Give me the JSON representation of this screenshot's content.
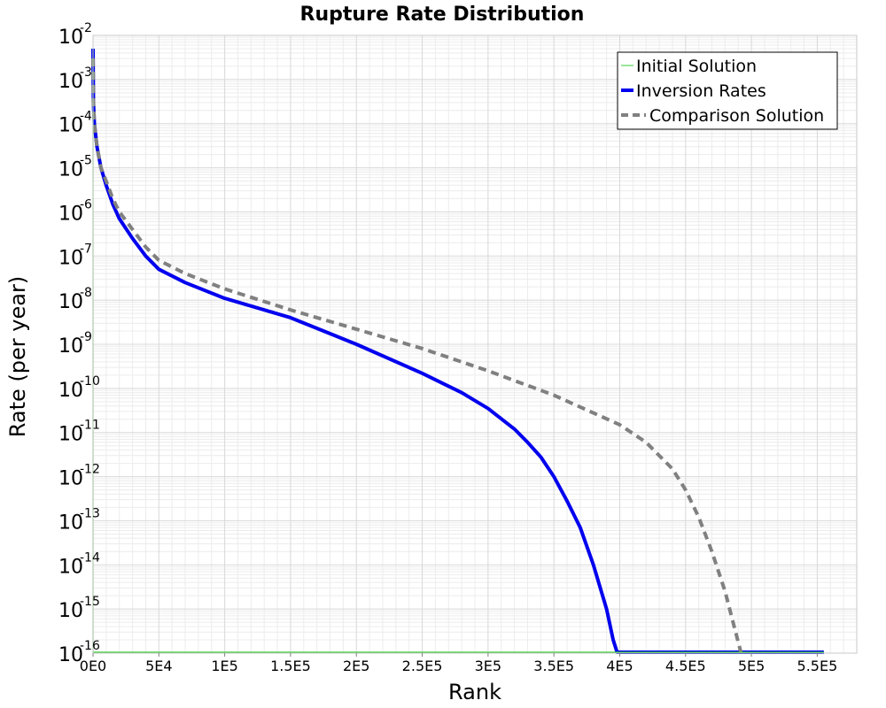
{
  "chart_data": {
    "type": "line",
    "title": "Rupture Rate Distribution",
    "xlabel": "Rank",
    "ylabel": "Rate (per year)",
    "xlim": [
      0,
      580000
    ],
    "ylim": [
      1e-16,
      0.01
    ],
    "y_scale": "log",
    "grid": true,
    "legend_position": "top-right",
    "x_ticks": [
      {
        "value": 0,
        "label": "0E0"
      },
      {
        "value": 50000,
        "label": "5E4"
      },
      {
        "value": 100000,
        "label": "1E5"
      },
      {
        "value": 150000,
        "label": "1.5E5"
      },
      {
        "value": 200000,
        "label": "2E5"
      },
      {
        "value": 250000,
        "label": "2.5E5"
      },
      {
        "value": 300000,
        "label": "3E5"
      },
      {
        "value": 350000,
        "label": "3.5E5"
      },
      {
        "value": 400000,
        "label": "4E5"
      },
      {
        "value": 450000,
        "label": "4.5E5"
      },
      {
        "value": 500000,
        "label": "5E5"
      },
      {
        "value": 550000,
        "label": "5.5E5"
      }
    ],
    "y_ticks": [
      {
        "value": 0.01,
        "base": "10",
        "exp": "-2"
      },
      {
        "value": 0.001,
        "base": "10",
        "exp": "-3"
      },
      {
        "value": 0.0001,
        "base": "10",
        "exp": "-4"
      },
      {
        "value": 1e-05,
        "base": "10",
        "exp": "-5"
      },
      {
        "value": 1e-06,
        "base": "10",
        "exp": "-6"
      },
      {
        "value": 1e-07,
        "base": "10",
        "exp": "-7"
      },
      {
        "value": 1e-08,
        "base": "10",
        "exp": "-8"
      },
      {
        "value": 1e-09,
        "base": "10",
        "exp": "-9"
      },
      {
        "value": 1e-10,
        "base": "10",
        "exp": "-10"
      },
      {
        "value": 1e-11,
        "base": "10",
        "exp": "-11"
      },
      {
        "value": 1e-12,
        "base": "10",
        "exp": "-12"
      },
      {
        "value": 1e-13,
        "base": "10",
        "exp": "-13"
      },
      {
        "value": 1e-14,
        "base": "10",
        "exp": "-14"
      },
      {
        "value": 1e-15,
        "base": "10",
        "exp": "-15"
      },
      {
        "value": 1e-16,
        "base": "10",
        "exp": "-16"
      }
    ],
    "series": [
      {
        "name": "Initial Solution",
        "color": "#33cc33",
        "style": "thin-solid",
        "points": [
          [
            0,
            1e-16
          ],
          [
            0,
            0.005
          ],
          [
            0,
            1e-16
          ],
          [
            555000,
            1e-16
          ]
        ]
      },
      {
        "name": "Inversion Rates",
        "color": "#0000ee",
        "style": "thick-solid",
        "points": [
          [
            0,
            0.005
          ],
          [
            300,
            0.0003
          ],
          [
            1000,
            0.0001
          ],
          [
            3000,
            3e-05
          ],
          [
            6000,
            1e-05
          ],
          [
            10000,
            4e-06
          ],
          [
            15000,
            1.5e-06
          ],
          [
            20000,
            7e-07
          ],
          [
            30000,
            2.5e-07
          ],
          [
            40000,
            1e-07
          ],
          [
            50000,
            5e-08
          ],
          [
            70000,
            2.5e-08
          ],
          [
            100000,
            1.1e-08
          ],
          [
            150000,
            4e-09
          ],
          [
            200000,
            1e-09
          ],
          [
            250000,
            2.2e-10
          ],
          [
            280000,
            8e-11
          ],
          [
            300000,
            3.5e-11
          ],
          [
            320000,
            1.2e-11
          ],
          [
            330000,
            6e-12
          ],
          [
            340000,
            2.8e-12
          ],
          [
            350000,
            1e-12
          ],
          [
            360000,
            2.8e-13
          ],
          [
            370000,
            7e-14
          ],
          [
            380000,
            1e-14
          ],
          [
            390000,
            1e-15
          ],
          [
            395000,
            2e-16
          ],
          [
            398000,
            1e-16
          ],
          [
            555000,
            1e-16
          ]
        ]
      },
      {
        "name": "Comparison Solution",
        "color": "#808080",
        "style": "thick-dashed",
        "points": [
          [
            0,
            0.003
          ],
          [
            300,
            0.0003
          ],
          [
            1000,
            0.0001
          ],
          [
            3000,
            3e-05
          ],
          [
            6000,
            1e-05
          ],
          [
            10000,
            5e-06
          ],
          [
            15000,
            2e-06
          ],
          [
            20000,
            1e-06
          ],
          [
            30000,
            4e-07
          ],
          [
            40000,
            1.6e-07
          ],
          [
            50000,
            8e-08
          ],
          [
            70000,
            4e-08
          ],
          [
            100000,
            1.8e-08
          ],
          [
            150000,
            6e-09
          ],
          [
            200000,
            2.2e-09
          ],
          [
            250000,
            8e-10
          ],
          [
            300000,
            2.5e-10
          ],
          [
            350000,
            7e-11
          ],
          [
            400000,
            1.5e-11
          ],
          [
            420000,
            6e-12
          ],
          [
            440000,
            1.5e-12
          ],
          [
            450000,
            5e-13
          ],
          [
            460000,
            1.2e-13
          ],
          [
            470000,
            2e-14
          ],
          [
            480000,
            2.5e-15
          ],
          [
            488000,
            3e-16
          ],
          [
            492000,
            1e-16
          ]
        ]
      }
    ]
  }
}
